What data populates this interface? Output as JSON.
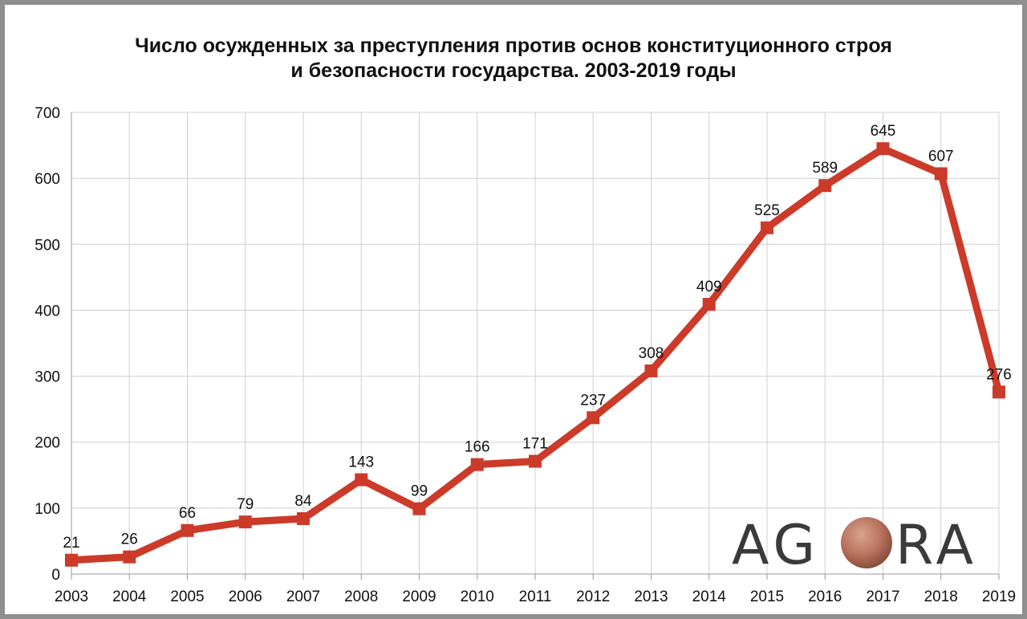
{
  "chart_data": {
    "type": "line",
    "title_line1": "Число осужденных за преступления против основ конституционного строя",
    "title_line2": "и безопасности государства. 2003-2019 годы",
    "x": [
      "2003",
      "2004",
      "2005",
      "2006",
      "2007",
      "2008",
      "2009",
      "2010",
      "2011",
      "2012",
      "2013",
      "2014",
      "2015",
      "2016",
      "2017",
      "2018",
      "2019"
    ],
    "values": [
      21,
      26,
      66,
      79,
      84,
      143,
      99,
      166,
      171,
      237,
      308,
      409,
      525,
      589,
      645,
      607,
      276
    ],
    "ylim": [
      0,
      700
    ],
    "yticks": [
      0,
      100,
      200,
      300,
      400,
      500,
      600,
      700
    ],
    "grid": true,
    "line_color": "#cc3a2a",
    "data_labels": true
  },
  "logo": {
    "text_left": "AG",
    "text_right": "RA",
    "ball_color": "#b8735e"
  }
}
